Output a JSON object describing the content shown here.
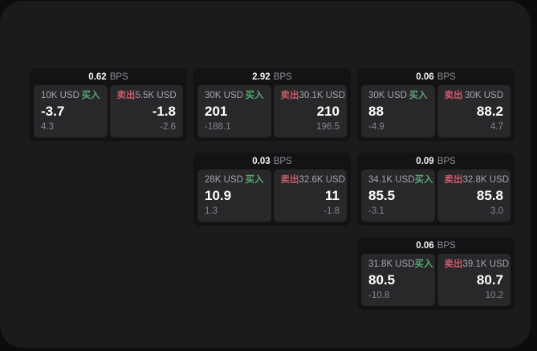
{
  "labels": {
    "bps_unit": "BPS",
    "buy": "买入",
    "sell": "卖出"
  },
  "colors": {
    "buy": "#5aa573",
    "sell": "#cd5a69",
    "frame_bg": "#1b1b1d",
    "card_bg": "#131315",
    "panel_bg": "#28282b"
  },
  "cards": [
    {
      "bps": "0.62",
      "buy": {
        "amount": "10K USD",
        "value": "-3.7",
        "sub": "4.3"
      },
      "sell": {
        "amount": "5.5K USD",
        "value": "-1.8",
        "sub": "-2.6"
      }
    },
    {
      "bps": "2.92",
      "buy": {
        "amount": "30K USD",
        "value": "201",
        "sub": "-188.1"
      },
      "sell": {
        "amount": "30.1K USD",
        "value": "210",
        "sub": "196.5"
      }
    },
    {
      "bps": "0.06",
      "buy": {
        "amount": "30K USD",
        "value": "88",
        "sub": "-4.9"
      },
      "sell": {
        "amount": "30K USD",
        "value": "88.2",
        "sub": "4.7"
      }
    },
    {
      "bps": "0.03",
      "buy": {
        "amount": "28K USD",
        "value": "10.9",
        "sub": "1.3"
      },
      "sell": {
        "amount": "32.6K USD",
        "value": "11",
        "sub": "-1.8"
      }
    },
    {
      "bps": "0.09",
      "buy": {
        "amount": "34.1K USD",
        "value": "85.5",
        "sub": "-3.1"
      },
      "sell": {
        "amount": "32.8K USD",
        "value": "85.8",
        "sub": "3.0"
      }
    },
    {
      "bps": "0.06",
      "buy": {
        "amount": "31.8K USD",
        "value": "80.5",
        "sub": "-10.8"
      },
      "sell": {
        "amount": "39.1K USD",
        "value": "80.7",
        "sub": "10.2"
      }
    }
  ]
}
